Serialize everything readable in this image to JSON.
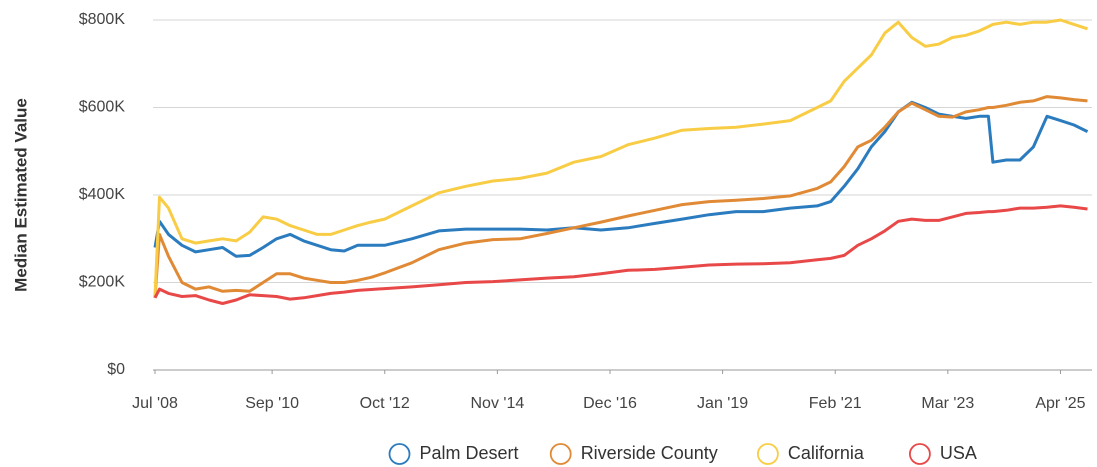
{
  "chart_data": {
    "type": "line",
    "y_label": "Median Estimated Value",
    "x": [
      "2008-07",
      "2008-08",
      "2008-10",
      "2009-01",
      "2009-04",
      "2009-07",
      "2009-10",
      "2010-01",
      "2010-04",
      "2010-07",
      "2010-10",
      "2011-01",
      "2011-04",
      "2011-07",
      "2011-10",
      "2012-01",
      "2012-04",
      "2012-07",
      "2012-10",
      "2013-04",
      "2013-10",
      "2014-04",
      "2014-10",
      "2015-04",
      "2015-10",
      "2016-04",
      "2016-10",
      "2017-04",
      "2017-10",
      "2018-04",
      "2018-10",
      "2019-04",
      "2019-10",
      "2020-04",
      "2020-10",
      "2021-01",
      "2021-04",
      "2021-07",
      "2021-10",
      "2022-01",
      "2022-04",
      "2022-07",
      "2022-10",
      "2023-01",
      "2023-04",
      "2023-07",
      "2023-10",
      "2023-12",
      "2024-01",
      "2024-04",
      "2024-07",
      "2024-10",
      "2025-01",
      "2025-04",
      "2025-07",
      "2025-10"
    ],
    "series": [
      {
        "name": "Palm Desert",
        "color": "#2b7bbf",
        "values": [
          280000,
          340000,
          310000,
          285000,
          270000,
          275000,
          280000,
          260000,
          262000,
          280000,
          300000,
          310000,
          295000,
          285000,
          275000,
          272000,
          285000,
          285000,
          285000,
          300000,
          318000,
          322000,
          322000,
          322000,
          320000,
          325000,
          320000,
          325000,
          335000,
          345000,
          355000,
          362000,
          362000,
          370000,
          375000,
          385000,
          420000,
          460000,
          510000,
          545000,
          590000,
          612000,
          600000,
          585000,
          580000,
          575000,
          580000,
          580000,
          475000,
          480000,
          480000,
          510000,
          580000,
          570000,
          560000,
          545000
        ]
      },
      {
        "name": "Riverside County",
        "color": "#e08a36",
        "values": [
          165000,
          310000,
          260000,
          200000,
          185000,
          190000,
          180000,
          182000,
          180000,
          200000,
          220000,
          220000,
          210000,
          205000,
          200000,
          200000,
          205000,
          212000,
          222000,
          245000,
          275000,
          290000,
          298000,
          300000,
          312000,
          325000,
          338000,
          352000,
          365000,
          378000,
          385000,
          388000,
          392000,
          398000,
          415000,
          430000,
          465000,
          510000,
          525000,
          555000,
          590000,
          610000,
          595000,
          580000,
          578000,
          590000,
          595000,
          600000,
          600000,
          605000,
          612000,
          615000,
          625000,
          622000,
          618000,
          615000
        ]
      },
      {
        "name": "California",
        "color": "#f8cd45",
        "values": [
          170000,
          395000,
          370000,
          300000,
          290000,
          295000,
          300000,
          295000,
          315000,
          350000,
          345000,
          330000,
          320000,
          310000,
          310000,
          320000,
          330000,
          338000,
          345000,
          375000,
          405000,
          420000,
          432000,
          438000,
          450000,
          475000,
          488000,
          515000,
          530000,
          548000,
          552000,
          555000,
          562000,
          570000,
          600000,
          615000,
          660000,
          690000,
          720000,
          770000,
          795000,
          760000,
          740000,
          745000,
          760000,
          765000,
          775000,
          785000,
          790000,
          795000,
          790000,
          795000,
          795000,
          800000,
          790000,
          780000
        ]
      },
      {
        "name": "USA",
        "color": "#e84848",
        "values": [
          165000,
          185000,
          175000,
          168000,
          170000,
          160000,
          152000,
          160000,
          172000,
          170000,
          168000,
          162000,
          165000,
          170000,
          175000,
          178000,
          182000,
          184000,
          186000,
          190000,
          195000,
          200000,
          202000,
          206000,
          210000,
          213000,
          220000,
          228000,
          230000,
          235000,
          240000,
          242000,
          243000,
          245000,
          252000,
          255000,
          262000,
          285000,
          300000,
          318000,
          340000,
          345000,
          342000,
          342000,
          350000,
          358000,
          360000,
          362000,
          362000,
          365000,
          370000,
          370000,
          372000,
          375000,
          372000,
          368000
        ]
      }
    ],
    "xlim": [
      "2008-07",
      "2025-11"
    ],
    "xticks": [
      {
        "value": "2008-07",
        "label": "Jul '08"
      },
      {
        "value": "2010-09",
        "label": "Sep '10"
      },
      {
        "value": "2012-10",
        "label": "Oct '12"
      },
      {
        "value": "2014-11",
        "label": "Nov '14"
      },
      {
        "value": "2016-12",
        "label": "Dec '16"
      },
      {
        "value": "2019-01",
        "label": "Jan '19"
      },
      {
        "value": "2021-02",
        "label": "Feb '21"
      },
      {
        "value": "2023-03",
        "label": "Mar '23"
      },
      {
        "value": "2025-04",
        "label": "Apr '25"
      }
    ],
    "ylim": [
      0,
      800000
    ],
    "yticks": [
      {
        "value": 0,
        "label": "$0"
      },
      {
        "value": 200000,
        "label": "$200K"
      },
      {
        "value": 400000,
        "label": "$400K"
      },
      {
        "value": 600000,
        "label": "$600K"
      },
      {
        "value": 800000,
        "label": "$800K"
      }
    ],
    "grid": true,
    "legend": "bottom"
  }
}
